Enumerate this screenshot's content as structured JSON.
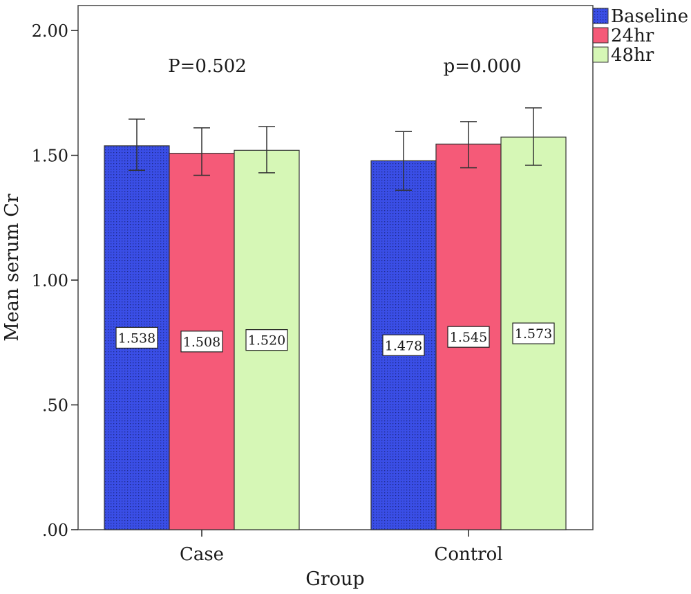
{
  "chart_data": {
    "type": "bar",
    "xlabel": "Group",
    "ylabel": "Mean serum Cr",
    "categories": [
      "Case",
      "Control"
    ],
    "series": [
      {
        "name": "Baseline",
        "values": [
          1.538,
          1.478
        ],
        "err_low": [
          1.44,
          1.36
        ],
        "err_high": [
          1.645,
          1.595
        ],
        "color": "#3a4ee6",
        "pattern": "dots"
      },
      {
        "name": "24hr",
        "values": [
          1.508,
          1.545
        ],
        "err_low": [
          1.42,
          1.45
        ],
        "err_high": [
          1.61,
          1.635
        ],
        "color": "#f55a78",
        "pattern": "none"
      },
      {
        "name": "48hr",
        "values": [
          1.52,
          1.573
        ],
        "err_low": [
          1.43,
          1.46
        ],
        "err_high": [
          1.615,
          1.69
        ],
        "color": "#d6f7b6",
        "pattern": "none"
      }
    ],
    "data_labels": [
      [
        "1.538",
        "1.478"
      ],
      [
        "1.508",
        "1.545"
      ],
      [
        "1.520",
        "1.573"
      ]
    ],
    "annotations": [
      "P=0.502",
      "p=0.000"
    ],
    "ylim": [
      0,
      2.1
    ],
    "yticks": [
      0,
      0.5,
      1.0,
      1.5,
      2.0
    ],
    "ytick_labels": [
      ".00",
      ".50",
      "1.00",
      "1.50",
      "2.00"
    ],
    "grid": false,
    "legend_position": "top-right"
  }
}
